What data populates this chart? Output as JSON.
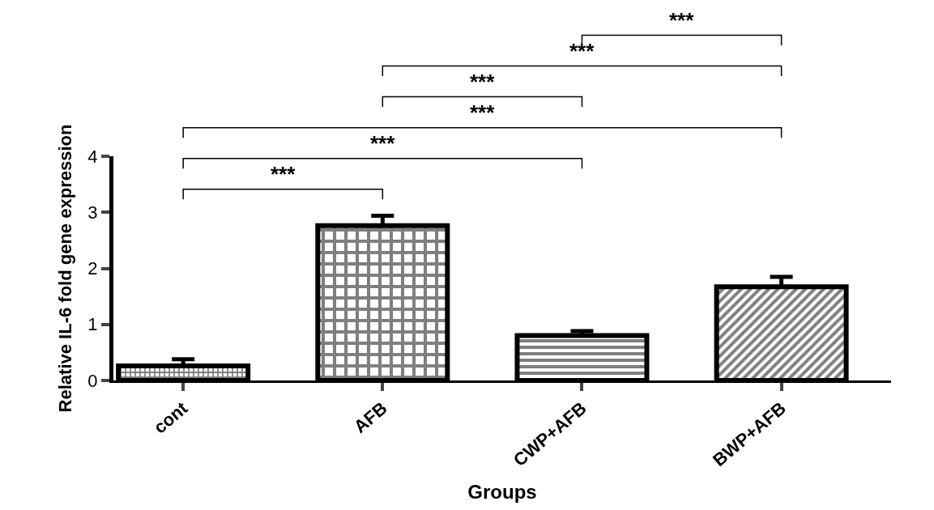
{
  "chart_data": {
    "type": "bar",
    "xlabel": "Groups",
    "ylabel": "Relative IL-6 fold gene expression",
    "categories": [
      "cont",
      "AFB",
      "CWP+AFB",
      "BWP+AFB"
    ],
    "values": [
      0.26,
      2.76,
      0.8,
      1.67
    ],
    "errors": [
      [
        0.26,
        0.38
      ],
      [
        2.76,
        2.94
      ],
      [
        0.8,
        0.88
      ],
      [
        1.67,
        1.85
      ]
    ],
    "colors": [
      "#000000",
      "#000000",
      "#000000",
      "#000000"
    ],
    "ylim": [
      0,
      4
    ],
    "yticks": [
      0,
      1,
      2,
      3,
      4
    ],
    "annotations": [
      "***",
      "***",
      "***",
      "***",
      "***",
      "***"
    ]
  }
}
